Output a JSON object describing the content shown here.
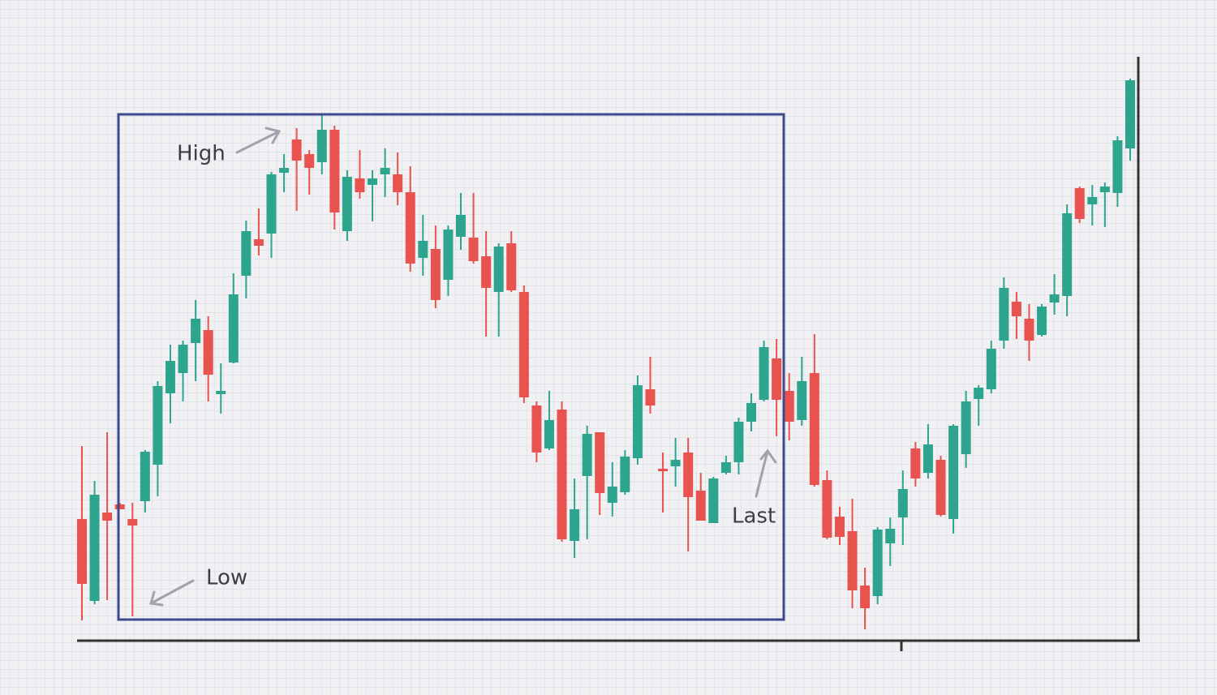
{
  "chart_data": {
    "type": "candlestick",
    "annotations": [
      "High",
      "Low",
      "Last"
    ],
    "up_color": "#2da58e",
    "down_color": "#e8534f",
    "ylim": [
      0,
      720
    ],
    "open": [
      150,
      49,
      158,
      168,
      150,
      172,
      217,
      305,
      330,
      367,
      383,
      304,
      343,
      450,
      495,
      502,
      577,
      618,
      600,
      590,
      630,
      505,
      570,
      562,
      575,
      575,
      553,
      472,
      483,
      445,
      498,
      497,
      474,
      430,
      490,
      430,
      290,
      237,
      285,
      123,
      203,
      257,
      170,
      183,
      225,
      310,
      212,
      215,
      232,
      185,
      145,
      207,
      220,
      270,
      297,
      348,
      308,
      272,
      330,
      198,
      153,
      135,
      68,
      55,
      120,
      152,
      237,
      207,
      223,
      150,
      230,
      298,
      310,
      370,
      418,
      397,
      377,
      417,
      425,
      558,
      538,
      553,
      552,
      607
    ],
    "high": [
      240,
      197,
      257,
      170,
      170,
      235,
      320,
      365,
      370,
      420,
      400,
      342,
      453,
      518,
      533,
      578,
      600,
      632,
      605,
      650,
      635,
      580,
      605,
      580,
      607,
      602,
      585,
      525,
      512,
      512,
      552,
      552,
      505,
      490,
      505,
      438,
      295,
      308,
      295,
      200,
      265,
      257,
      220,
      235,
      327,
      350,
      232,
      250,
      250,
      207,
      202,
      228,
      275,
      305,
      370,
      372,
      330,
      350,
      378,
      210,
      165,
      175,
      90,
      140,
      152,
      210,
      245,
      267,
      228,
      267,
      308,
      315,
      370,
      448,
      430,
      415,
      415,
      452,
      538,
      560,
      562,
      565,
      622,
      693
    ],
    "low": [
      25,
      45,
      50,
      162,
      30,
      158,
      178,
      268,
      295,
      320,
      295,
      280,
      342,
      422,
      475,
      472,
      553,
      530,
      550,
      575,
      507,
      493,
      545,
      517,
      547,
      537,
      455,
      450,
      410,
      425,
      482,
      465,
      375,
      375,
      430,
      293,
      220,
      235,
      122,
      102,
      125,
      155,
      153,
      180,
      217,
      280,
      158,
      190,
      110,
      148,
      145,
      205,
      205,
      258,
      295,
      252,
      247,
      265,
      190,
      125,
      118,
      40,
      14,
      45,
      92,
      118,
      190,
      200,
      153,
      132,
      213,
      265,
      305,
      360,
      372,
      345,
      375,
      402,
      400,
      515,
      512,
      510,
      535,
      592
    ],
    "close": [
      70,
      180,
      148,
      162,
      142,
      233,
      314,
      345,
      365,
      397,
      328,
      308,
      427,
      505,
      487,
      575,
      583,
      592,
      583,
      630,
      528,
      572,
      553,
      570,
      583,
      553,
      465,
      493,
      420,
      507,
      525,
      468,
      435,
      486,
      432,
      300,
      232,
      272,
      125,
      162,
      255,
      182,
      190,
      227,
      315,
      290,
      209,
      223,
      177,
      148,
      200,
      220,
      270,
      293,
      362,
      297,
      270,
      320,
      192,
      127,
      128,
      62,
      40,
      137,
      138,
      187,
      200,
      242,
      155,
      265,
      295,
      312,
      360,
      435,
      400,
      370,
      412,
      427,
      527,
      520,
      547,
      560,
      617,
      691
    ]
  }
}
